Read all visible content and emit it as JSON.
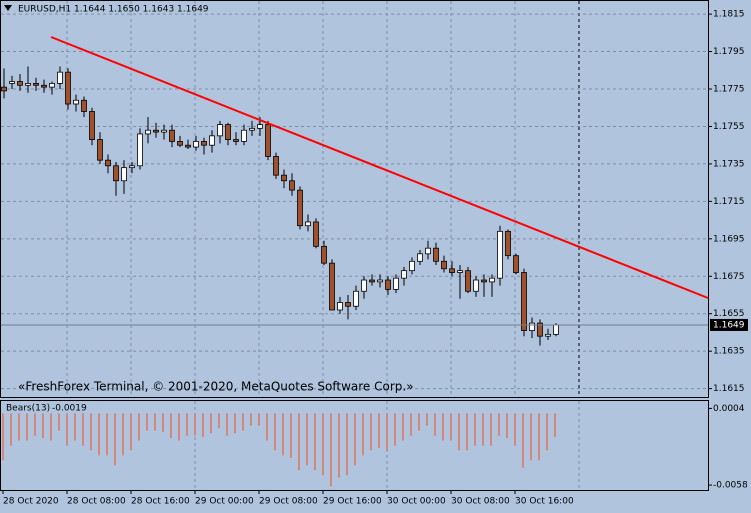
{
  "chart_data": [
    {
      "type": "candlestick",
      "title": "EURUSD,H1  1.1644 1.1650 1.1643 1.1649",
      "annotation": "«FreshForex Terminal, © 2001-2020, MetaQuotes Software Corp.»",
      "categories": [
        "28 Oct 2020",
        null,
        null,
        null,
        null,
        null,
        null,
        null,
        "28 Oct 08:00",
        null,
        null,
        null,
        null,
        null,
        null,
        null,
        "28 Oct 16:00",
        null,
        null,
        null,
        null,
        null,
        null,
        null,
        "29 Oct 00:00",
        null,
        null,
        null,
        null,
        null,
        null,
        null,
        "29 Oct 08:00",
        null,
        null,
        null,
        null,
        null,
        null,
        null,
        "29 Oct 16:00",
        null,
        null,
        null,
        null,
        null,
        null,
        null,
        "30 Oct 00:00",
        null,
        null,
        null,
        null,
        null,
        null,
        null,
        "30 Oct 08:00",
        null,
        null,
        null,
        null,
        null,
        null,
        null,
        "30 Oct 16:00",
        null,
        null,
        null,
        null,
        null
      ],
      "open": [
        1.1776,
        1.1778,
        1.1779,
        1.1777,
        1.1778,
        1.1777,
        1.1776,
        1.1778,
        1.1784,
        1.1767,
        1.1769,
        1.1763,
        1.1748,
        1.1737,
        1.1734,
        1.1726,
        1.1733,
        1.1734,
        1.1751,
        1.1753,
        1.1752,
        1.1753,
        1.1747,
        1.1745,
        1.1744,
        1.1747,
        1.1745,
        1.175,
        1.1756,
        1.1748,
        1.1747,
        1.1753,
        1.1754,
        1.1756,
        1.1739,
        1.1729,
        1.1726,
        1.1721,
        1.1702,
        1.1704,
        1.1691,
        1.1682,
        1.1657,
        1.1661,
        1.1659,
        1.1667,
        1.1673,
        1.1672,
        1.1673,
        1.1668,
        1.1674,
        1.1678,
        1.1683,
        1.1687,
        1.169,
        1.1683,
        1.1679,
        1.1677,
        1.1678,
        1.1667,
        1.1673,
        1.1672,
        1.1674,
        1.1699,
        1.1686,
        1.1677,
        1.1646,
        1.165,
        1.1643,
        1.1644
      ],
      "high": [
        1.1786,
        1.1782,
        1.1783,
        1.1787,
        1.1781,
        1.178,
        1.1779,
        1.1787,
        1.1786,
        1.1772,
        1.1771,
        1.1765,
        1.1752,
        1.174,
        1.1736,
        1.1737,
        1.1736,
        1.1754,
        1.176,
        1.1757,
        1.1756,
        1.1756,
        1.175,
        1.1748,
        1.175,
        1.1749,
        1.1753,
        1.1758,
        1.1757,
        1.1752,
        1.1756,
        1.1758,
        1.176,
        1.1758,
        1.1741,
        1.1732,
        1.173,
        1.1723,
        1.1708,
        1.1706,
        1.1694,
        1.1684,
        1.1664,
        1.1665,
        1.167,
        1.1675,
        1.1676,
        1.1676,
        1.1675,
        1.1676,
        1.168,
        1.1685,
        1.1689,
        1.1694,
        1.1693,
        1.1686,
        1.1683,
        1.1681,
        1.168,
        1.1675,
        1.1676,
        1.1676,
        1.1702,
        1.17,
        1.1687,
        1.1679,
        1.1653,
        1.1652,
        1.1647,
        1.165
      ],
      "low": [
        1.177,
        1.1775,
        1.1774,
        1.1773,
        1.1774,
        1.1773,
        1.1772,
        1.1775,
        1.1764,
        1.1763,
        1.176,
        1.1745,
        1.1735,
        1.173,
        1.1718,
        1.1719,
        1.173,
        1.1732,
        1.1746,
        1.1749,
        1.1748,
        1.1744,
        1.1744,
        1.1743,
        1.1742,
        1.174,
        1.1741,
        1.1746,
        1.1745,
        1.1745,
        1.1745,
        1.175,
        1.175,
        1.1737,
        1.1727,
        1.1722,
        1.1718,
        1.17,
        1.1699,
        1.169,
        1.1681,
        1.1657,
        1.1655,
        1.1652,
        1.1657,
        1.1663,
        1.167,
        1.1669,
        1.1665,
        1.1666,
        1.167,
        1.1676,
        1.1681,
        1.1684,
        1.1681,
        1.1677,
        1.1675,
        1.1663,
        1.1666,
        1.1664,
        1.1664,
        1.1664,
        1.167,
        1.1684,
        1.1676,
        1.1643,
        1.1642,
        1.1638,
        1.1641,
        1.1643
      ],
      "close": [
        1.1774,
        1.1779,
        1.1777,
        1.1778,
        1.1777,
        1.1776,
        1.1778,
        1.1784,
        1.1767,
        1.1769,
        1.1763,
        1.1748,
        1.1737,
        1.1734,
        1.1726,
        1.1733,
        1.1734,
        1.1751,
        1.1753,
        1.1752,
        1.1753,
        1.1747,
        1.1745,
        1.1744,
        1.1747,
        1.1745,
        1.175,
        1.1756,
        1.1748,
        1.1747,
        1.1753,
        1.1754,
        1.1756,
        1.1739,
        1.1729,
        1.1726,
        1.1721,
        1.1702,
        1.1704,
        1.1691,
        1.1682,
        1.1657,
        1.1661,
        1.1659,
        1.1667,
        1.1673,
        1.1672,
        1.1673,
        1.1668,
        1.1674,
        1.1678,
        1.1683,
        1.1687,
        1.169,
        1.1683,
        1.1679,
        1.1677,
        1.1678,
        1.1667,
        1.1673,
        1.1672,
        1.1674,
        1.1699,
        1.1686,
        1.1677,
        1.1646,
        1.165,
        1.1643,
        1.1644,
        1.1649
      ],
      "up_color": "#ffffff",
      "down_color": "#a0522d",
      "ylim": [
        1.161,
        1.1822
      ],
      "yticks": [
        1.1815,
        1.1795,
        1.1775,
        1.1755,
        1.1735,
        1.1715,
        1.1695,
        1.1675,
        1.1655,
        1.1635,
        1.1615
      ],
      "grid": true
    },
    {
      "type": "bar",
      "title": "Bears(13)",
      "values": [
        -0.0038,
        -0.0026,
        -0.0022,
        -0.0022,
        -0.0018,
        -0.002,
        -0.0022,
        -0.0014,
        -0.0026,
        -0.0022,
        -0.0026,
        -0.003,
        -0.0034,
        -0.0034,
        -0.0042,
        -0.0034,
        -0.003,
        -0.0022,
        -0.0014,
        -0.0014,
        -0.0015,
        -0.002,
        -0.0022,
        -0.0018,
        -0.0018,
        -0.0019,
        -0.0016,
        -0.0012,
        -0.0018,
        -0.0016,
        -0.0014,
        -0.001,
        -0.001,
        -0.0022,
        -0.003,
        -0.0034,
        -0.0036,
        -0.0046,
        -0.0042,
        -0.0046,
        -0.005,
        -0.0059,
        -0.0052,
        -0.005,
        -0.0042,
        -0.0034,
        -0.003,
        -0.0028,
        -0.003,
        -0.0026,
        -0.0022,
        -0.0018,
        -0.0014,
        -0.001,
        -0.0018,
        -0.0022,
        -0.0022,
        -0.003,
        -0.003,
        -0.0026,
        -0.0026,
        -0.0026,
        -0.0018,
        -0.002,
        -0.0026,
        -0.0044,
        -0.0038,
        -0.0038,
        -0.003,
        -0.0019
      ],
      "color": "#e8603c",
      "ylim": [
        -0.0062,
        0.001
      ],
      "yticks": [
        0.0004,
        -0.0058
      ]
    }
  ]
}
